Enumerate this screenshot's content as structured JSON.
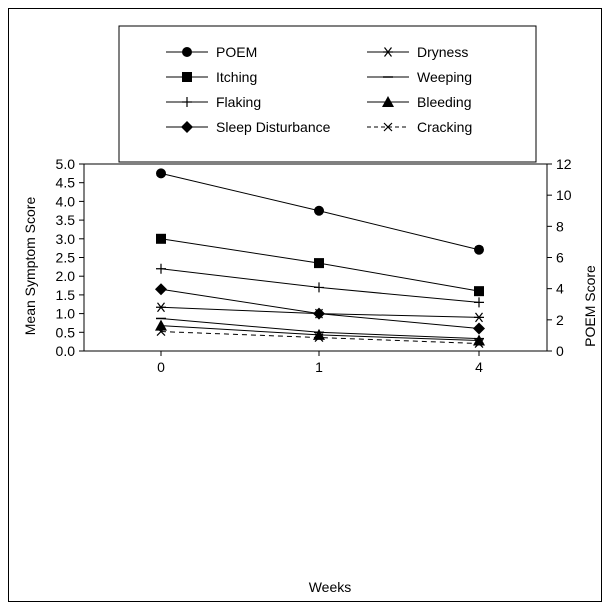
{
  "chart_data": {
    "type": "line",
    "xlabel": "Weeks",
    "ylabel": "Mean Symptom Score",
    "y2label": "POEM Score",
    "categories": [
      "0",
      "1",
      "4"
    ],
    "ylim": [
      0,
      5
    ],
    "y2lim": [
      0,
      12
    ],
    "yticks": [
      "0.0",
      "0.5",
      "1.0",
      "1.5",
      "2.0",
      "2.5",
      "3.0",
      "3.5",
      "4.0",
      "4.5",
      "5.0"
    ],
    "y2ticks": [
      "0",
      "2",
      "4",
      "6",
      "8",
      "10",
      "12"
    ],
    "legend_position": "top",
    "grid": false,
    "series": [
      {
        "name": "POEM",
        "axis": "right",
        "marker": "circle",
        "dashed": false,
        "values": [
          11.4,
          9.0,
          6.5
        ]
      },
      {
        "name": "Itching",
        "axis": "left",
        "marker": "square",
        "dashed": false,
        "values": [
          3.0,
          2.35,
          1.6
        ]
      },
      {
        "name": "Flaking",
        "axis": "left",
        "marker": "plus",
        "dashed": false,
        "values": [
          2.2,
          1.7,
          1.3
        ]
      },
      {
        "name": "Sleep Disturbance",
        "axis": "left",
        "marker": "diamond",
        "dashed": false,
        "values": [
          1.65,
          1.0,
          0.6
        ]
      },
      {
        "name": "Dryness",
        "axis": "left",
        "marker": "asterisk",
        "dashed": false,
        "values": [
          1.17,
          1.0,
          0.9
        ]
      },
      {
        "name": "Weeping",
        "axis": "left",
        "marker": "dash",
        "dashed": false,
        "values": [
          0.87,
          0.5,
          0.33
        ]
      },
      {
        "name": "Bleeding",
        "axis": "left",
        "marker": "triangle",
        "dashed": false,
        "values": [
          0.68,
          0.43,
          0.28
        ]
      },
      {
        "name": "Cracking",
        "axis": "left",
        "marker": "x",
        "dashed": true,
        "values": [
          0.52,
          0.36,
          0.2
        ]
      }
    ]
  }
}
